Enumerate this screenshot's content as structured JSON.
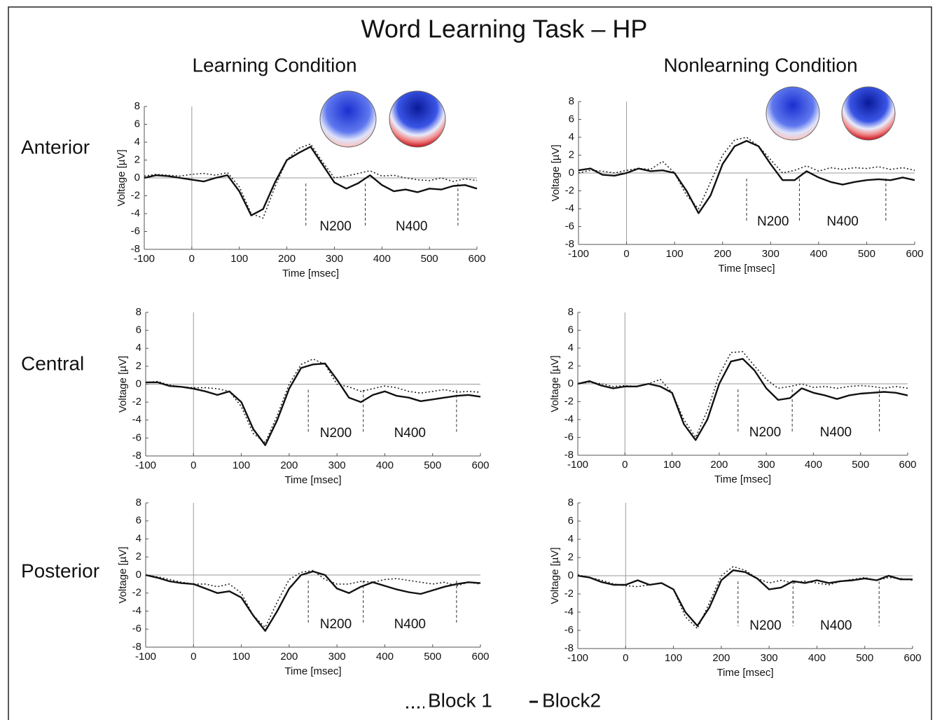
{
  "header": {
    "title": "Word Learning Task – HP",
    "columns": [
      "Learning  Condition",
      "Nonlearning  Condition"
    ],
    "rows": [
      "Anterior",
      "Central",
      "Posterior"
    ]
  },
  "chart_data": [
    {
      "type": "line",
      "xlabel": "Time [msec]",
      "ylabel": "Voltage [µV]",
      "x": [
        -100,
        -75,
        -50,
        -25,
        0,
        25,
        50,
        75,
        100,
        125,
        150,
        175,
        200,
        225,
        250,
        275,
        300,
        325,
        350,
        375,
        400,
        425,
        450,
        475,
        500,
        525,
        550,
        575,
        600
      ],
      "series": [
        {
          "name": "Block 1",
          "color": "#222222",
          "line_style": "dotted",
          "values": [
            0.2,
            0.4,
            0.3,
            0.2,
            0.4,
            0.5,
            0.3,
            0.6,
            -1,
            -4,
            -4.5,
            -1,
            2,
            3.3,
            3.8,
            1.8,
            0,
            0.2,
            0.5,
            0.8,
            0.2,
            0.3,
            0,
            -0.2,
            -0.3,
            0,
            -0.4,
            -0.1,
            -0.3
          ]
        },
        {
          "name": "Block2",
          "color": "#111111",
          "line_style": "solid",
          "values": [
            0,
            0.3,
            0.2,
            0,
            -0.2,
            -0.4,
            0,
            0.3,
            -1.5,
            -4.2,
            -3.5,
            -0.5,
            2,
            2.8,
            3.5,
            1.5,
            -0.5,
            -1.2,
            -0.6,
            0.3,
            -0.8,
            -1.5,
            -1.3,
            -1.6,
            -1.2,
            -1.3,
            -0.9,
            -0.8,
            -1.2
          ]
        }
      ],
      "window_lines": [
        240,
        365,
        560
      ],
      "annotations": [
        "N200",
        "N400"
      ],
      "xlim": [
        -100,
        600
      ],
      "xticks": [
        -100,
        0,
        100,
        200,
        300,
        400,
        500,
        600
      ],
      "ylim": [
        -8,
        8
      ],
      "yticks": [
        -8,
        -6,
        -4,
        -2,
        0,
        2,
        4,
        6,
        8
      ]
    },
    {
      "type": "line",
      "xlabel": "Time [msec]",
      "ylabel": "Voltage [µV]",
      "x": [
        -100,
        -75,
        -50,
        -25,
        0,
        25,
        50,
        75,
        100,
        125,
        150,
        175,
        200,
        225,
        250,
        275,
        300,
        325,
        350,
        375,
        400,
        425,
        450,
        475,
        500,
        525,
        550,
        575,
        600
      ],
      "series": [
        {
          "name": "Block 1",
          "color": "#222222",
          "line_style": "dotted",
          "values": [
            0,
            0.3,
            0.2,
            0,
            0.3,
            0.5,
            0.4,
            1.3,
            0,
            -2.5,
            -4,
            -1,
            2,
            3.7,
            4,
            3,
            1.5,
            0,
            0.3,
            0.8,
            0.2,
            0.6,
            0.4,
            0.6,
            0.5,
            0.7,
            0.4,
            0.6,
            0.3
          ]
        },
        {
          "name": "Block2",
          "color": "#111111",
          "line_style": "solid",
          "values": [
            0.3,
            0.5,
            -0.2,
            -0.3,
            0,
            0.5,
            0.2,
            0.3,
            0,
            -2,
            -4.5,
            -2.5,
            1,
            3,
            3.6,
            3,
            1,
            -0.8,
            -0.8,
            0.2,
            -0.5,
            -1,
            -1.3,
            -1,
            -0.8,
            -0.7,
            -0.8,
            -0.5,
            -0.8
          ]
        }
      ],
      "window_lines": [
        250,
        360,
        540
      ],
      "annotations": [
        "N200",
        "N400"
      ],
      "xlim": [
        -100,
        600
      ],
      "xticks": [
        -100,
        0,
        100,
        200,
        300,
        400,
        500,
        600
      ],
      "ylim": [
        -8,
        8
      ],
      "yticks": [
        -8,
        -6,
        -4,
        -2,
        0,
        2,
        4,
        6,
        8
      ]
    },
    {
      "type": "line",
      "xlabel": "Time [msec]",
      "ylabel": "Voltage [µV]",
      "x": [
        -100,
        -75,
        -50,
        -25,
        0,
        25,
        50,
        75,
        100,
        125,
        150,
        175,
        200,
        225,
        250,
        275,
        300,
        325,
        350,
        375,
        400,
        425,
        450,
        475,
        500,
        525,
        550,
        575,
        600
      ],
      "series": [
        {
          "name": "Block 1",
          "color": "#222222",
          "line_style": "dotted",
          "values": [
            0.2,
            0.3,
            -0.1,
            -0.3,
            -0.4,
            -0.4,
            -0.5,
            -0.8,
            -2.5,
            -5.5,
            -6.5,
            -3.5,
            0,
            2.2,
            2.8,
            2.2,
            0,
            -0.3,
            -0.8,
            -0.5,
            -0.2,
            -0.4,
            -0.8,
            -1,
            -0.8,
            -0.6,
            -0.9,
            -0.8,
            -0.9
          ]
        },
        {
          "name": "Block2",
          "color": "#111111",
          "line_style": "solid",
          "values": [
            0.2,
            0.2,
            -0.2,
            -0.3,
            -0.5,
            -0.8,
            -1.2,
            -0.8,
            -2,
            -5,
            -6.8,
            -4,
            -0.5,
            1.8,
            2.2,
            2.3,
            0.5,
            -1.5,
            -2,
            -1.2,
            -0.8,
            -1.3,
            -1.5,
            -1.9,
            -1.7,
            -1.5,
            -1.3,
            -1.2,
            -1.4
          ]
        }
      ],
      "window_lines": [
        240,
        355,
        550
      ],
      "annotations": [
        "N200",
        "N400"
      ],
      "xlim": [
        -100,
        600
      ],
      "xticks": [
        -100,
        0,
        100,
        200,
        300,
        400,
        500,
        600
      ],
      "ylim": [
        -8,
        8
      ],
      "yticks": [
        -8,
        -6,
        -4,
        -2,
        0,
        2,
        4,
        6,
        8
      ]
    },
    {
      "type": "line",
      "xlabel": "Time [msec]",
      "ylabel": "Voltage [µV]",
      "x": [
        -100,
        -75,
        -50,
        -25,
        0,
        25,
        50,
        75,
        100,
        125,
        150,
        175,
        200,
        225,
        250,
        275,
        300,
        325,
        350,
        375,
        400,
        425,
        450,
        475,
        500,
        525,
        550,
        575,
        600
      ],
      "series": [
        {
          "name": "Block 1",
          "color": "#222222",
          "line_style": "dotted",
          "values": [
            0,
            0.2,
            0,
            -0.3,
            -0.2,
            -0.3,
            0,
            0.5,
            -1,
            -4,
            -6,
            -3,
            1,
            3.5,
            3.6,
            2,
            0.5,
            -0.5,
            -0.3,
            0,
            -0.4,
            -0.3,
            -0.5,
            -0.3,
            -0.2,
            -0.3,
            -0.5,
            -0.3,
            -0.5
          ]
        },
        {
          "name": "Block2",
          "color": "#111111",
          "line_style": "solid",
          "values": [
            0,
            0.3,
            -0.2,
            -0.5,
            -0.3,
            -0.3,
            0,
            -0.3,
            -1,
            -4.5,
            -6.3,
            -4,
            0,
            2.5,
            2.8,
            1.5,
            -0.5,
            -1.8,
            -1.6,
            -0.5,
            -1,
            -1.3,
            -1.7,
            -1.3,
            -1.1,
            -1,
            -0.9,
            -1,
            -1.3
          ]
        }
      ],
      "window_lines": [
        240,
        355,
        540
      ],
      "annotations": [
        "N200",
        "N400"
      ],
      "xlim": [
        -100,
        600
      ],
      "xticks": [
        -100,
        0,
        100,
        200,
        300,
        400,
        500,
        600
      ],
      "ylim": [
        -8,
        8
      ],
      "yticks": [
        -8,
        -6,
        -4,
        -2,
        0,
        2,
        4,
        6,
        8
      ]
    },
    {
      "type": "line",
      "xlabel": "Time [msec]",
      "ylabel": "Voltage [µV]",
      "x": [
        -100,
        -75,
        -50,
        -25,
        0,
        25,
        50,
        75,
        100,
        125,
        150,
        175,
        200,
        225,
        250,
        275,
        300,
        325,
        350,
        375,
        400,
        425,
        450,
        475,
        500,
        525,
        550,
        575,
        600
      ],
      "series": [
        {
          "name": "Block 1",
          "color": "#222222",
          "line_style": "dotted",
          "values": [
            0,
            -0.2,
            -0.5,
            -0.8,
            -1,
            -1,
            -1.3,
            -1,
            -2,
            -4.5,
            -5.8,
            -3,
            -0.5,
            0.3,
            0.5,
            -0.5,
            -1,
            -1,
            -0.7,
            -0.8,
            -0.5,
            -0.4,
            -0.6,
            -0.8,
            -1,
            -0.8,
            -1.2,
            -0.8,
            -1
          ]
        },
        {
          "name": "Block2",
          "color": "#111111",
          "line_style": "solid",
          "values": [
            0,
            -0.3,
            -0.7,
            -0.9,
            -1,
            -1.5,
            -2,
            -1.8,
            -2.5,
            -4.5,
            -6.2,
            -4,
            -1.5,
            0,
            0.4,
            0,
            -1.5,
            -2,
            -1.3,
            -0.8,
            -1.2,
            -1.6,
            -1.9,
            -2.1,
            -1.7,
            -1.3,
            -1,
            -0.8,
            -0.9
          ]
        }
      ],
      "window_lines": [
        240,
        355,
        550
      ],
      "annotations": [
        "N200",
        "N400"
      ],
      "xlim": [
        -100,
        600
      ],
      "xticks": [
        -100,
        0,
        100,
        200,
        300,
        400,
        500,
        600
      ],
      "ylim": [
        -8,
        8
      ],
      "yticks": [
        -8,
        -6,
        -4,
        -2,
        0,
        2,
        4,
        6,
        8
      ]
    },
    {
      "type": "line",
      "xlabel": "Time [msec]",
      "ylabel": "Voltage [µV]",
      "x": [
        -100,
        -75,
        -50,
        -25,
        0,
        25,
        50,
        75,
        100,
        125,
        150,
        175,
        200,
        225,
        250,
        275,
        300,
        325,
        350,
        375,
        400,
        425,
        450,
        475,
        500,
        525,
        550,
        575,
        600
      ],
      "series": [
        {
          "name": "Block 1",
          "color": "#222222",
          "line_style": "dotted",
          "values": [
            0.1,
            -0.2,
            -0.5,
            -0.9,
            -1.1,
            -1.2,
            -1,
            -0.8,
            -1.5,
            -4.5,
            -5.8,
            -3,
            0,
            1,
            0.6,
            -0.3,
            -0.8,
            -0.5,
            -0.8,
            -0.6,
            -0.8,
            -1,
            -0.6,
            -0.4,
            -0.2,
            -0.5,
            -0.2,
            -0.3,
            -0.5
          ]
        },
        {
          "name": "Block2",
          "color": "#111111",
          "line_style": "solid",
          "values": [
            0,
            -0.2,
            -0.7,
            -1,
            -1,
            -0.5,
            -1,
            -0.8,
            -1.5,
            -4,
            -5.5,
            -3.5,
            -0.5,
            0.6,
            0.4,
            -0.3,
            -1.5,
            -1.3,
            -0.6,
            -0.8,
            -0.5,
            -0.8,
            -0.6,
            -0.5,
            -0.3,
            -0.5,
            0,
            -0.4,
            -0.4
          ]
        }
      ],
      "window_lines": [
        235,
        350,
        530
      ],
      "annotations": [
        "N200",
        "N400"
      ],
      "xlim": [
        -100,
        600
      ],
      "xticks": [
        -100,
        0,
        100,
        200,
        300,
        400,
        500,
        600
      ],
      "ylim": [
        -8,
        8
      ],
      "yticks": [
        -8,
        -6,
        -4,
        -2,
        0,
        2,
        4,
        6,
        8
      ]
    }
  ]
}
